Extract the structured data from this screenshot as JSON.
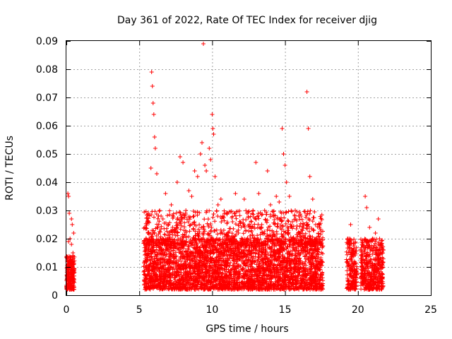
{
  "chart_data": {
    "type": "scatter",
    "title": "Day 361 of 2022, Rate Of TEC Index for receiver djig",
    "xlabel": "GPS time / hours",
    "ylabel": "ROTI / TECUs",
    "xlim": [
      0,
      25
    ],
    "ylim": [
      0,
      0.09
    ],
    "x_ticks": [
      0,
      5,
      10,
      15,
      20,
      25
    ],
    "y_ticks": [
      0,
      0.01,
      0.02,
      0.03,
      0.04,
      0.05,
      0.06,
      0.07,
      0.08,
      0.09
    ],
    "x_tick_labels": [
      "0",
      "5",
      "10",
      "15",
      "20",
      "25"
    ],
    "y_tick_labels": [
      "0",
      "0.01",
      "0.02",
      "0.03",
      "0.04",
      "0.05",
      "0.06",
      "0.07",
      "0.08",
      "0.09"
    ],
    "grid": true,
    "marker": "+",
    "color": "#ff0000",
    "series": [
      {
        "points": [
          [
            0.05,
            0.006
          ],
          [
            0.1,
            0.012
          ],
          [
            0.15,
            0.035
          ],
          [
            0.2,
            0.029
          ],
          [
            0.25,
            0.02
          ],
          [
            0.3,
            0.008
          ],
          [
            0.35,
            0.018
          ],
          [
            0.4,
            0.025
          ],
          [
            0.45,
            0.015
          ],
          [
            0.5,
            0.022
          ],
          [
            0.1,
            0.036
          ],
          [
            0.2,
            0.004
          ],
          [
            0.3,
            0.003
          ],
          [
            0.4,
            0.01
          ],
          [
            0.5,
            0.005
          ],
          [
            0.15,
            0.019
          ],
          [
            0.35,
            0.027
          ],
          [
            5.4,
            0.012
          ],
          [
            5.6,
            0.022
          ],
          [
            5.8,
            0.045
          ],
          [
            5.85,
            0.079
          ],
          [
            5.9,
            0.074
          ],
          [
            5.95,
            0.068
          ],
          [
            6.0,
            0.064
          ],
          [
            6.05,
            0.056
          ],
          [
            6.1,
            0.052
          ],
          [
            6.2,
            0.043
          ],
          [
            6.4,
            0.03
          ],
          [
            6.6,
            0.02
          ],
          [
            6.8,
            0.036
          ],
          [
            7.0,
            0.025
          ],
          [
            7.2,
            0.032
          ],
          [
            7.4,
            0.018
          ],
          [
            7.6,
            0.04
          ],
          [
            7.8,
            0.049
          ],
          [
            8.0,
            0.047
          ],
          [
            8.2,
            0.03
          ],
          [
            8.4,
            0.037
          ],
          [
            8.6,
            0.035
          ],
          [
            8.8,
            0.044
          ],
          [
            9.0,
            0.042
          ],
          [
            9.2,
            0.05
          ],
          [
            9.3,
            0.054
          ],
          [
            9.4,
            0.089
          ],
          [
            9.5,
            0.046
          ],
          [
            9.6,
            0.044
          ],
          [
            9.8,
            0.052
          ],
          [
            9.9,
            0.048
          ],
          [
            10.0,
            0.064
          ],
          [
            10.05,
            0.059
          ],
          [
            10.1,
            0.057
          ],
          [
            10.2,
            0.042
          ],
          [
            10.4,
            0.032
          ],
          [
            10.6,
            0.034
          ],
          [
            10.8,
            0.023
          ],
          [
            11.0,
            0.029
          ],
          [
            11.2,
            0.02
          ],
          [
            11.4,
            0.026
          ],
          [
            11.6,
            0.036
          ],
          [
            11.8,
            0.022
          ],
          [
            12.0,
            0.018
          ],
          [
            12.2,
            0.034
          ],
          [
            12.4,
            0.029
          ],
          [
            12.6,
            0.021
          ],
          [
            12.8,
            0.03
          ],
          [
            13.0,
            0.047
          ],
          [
            13.2,
            0.036
          ],
          [
            13.4,
            0.025
          ],
          [
            13.6,
            0.03
          ],
          [
            13.8,
            0.044
          ],
          [
            14.0,
            0.032
          ],
          [
            14.2,
            0.028
          ],
          [
            14.4,
            0.035
          ],
          [
            14.6,
            0.033
          ],
          [
            14.8,
            0.059
          ],
          [
            14.9,
            0.05
          ],
          [
            15.0,
            0.046
          ],
          [
            15.1,
            0.04
          ],
          [
            15.3,
            0.035
          ],
          [
            15.5,
            0.026
          ],
          [
            15.7,
            0.03
          ],
          [
            15.9,
            0.022
          ],
          [
            16.1,
            0.028
          ],
          [
            16.3,
            0.025
          ],
          [
            16.5,
            0.072
          ],
          [
            16.6,
            0.059
          ],
          [
            16.7,
            0.042
          ],
          [
            16.9,
            0.034
          ],
          [
            17.1,
            0.025
          ],
          [
            17.3,
            0.018
          ],
          [
            17.5,
            0.012
          ],
          [
            19.3,
            0.02
          ],
          [
            19.5,
            0.025
          ],
          [
            19.7,
            0.015
          ],
          [
            19.9,
            0.008
          ],
          [
            19.4,
            0.005
          ],
          [
            19.6,
            0.012
          ],
          [
            20.3,
            0.018
          ],
          [
            20.5,
            0.035
          ],
          [
            20.6,
            0.031
          ],
          [
            20.8,
            0.024
          ],
          [
            21.0,
            0.02
          ],
          [
            21.2,
            0.022
          ],
          [
            21.4,
            0.027
          ],
          [
            21.6,
            0.018
          ],
          [
            21.7,
            0.01
          ],
          [
            20.4,
            0.006
          ],
          [
            20.9,
            0.004
          ],
          [
            21.3,
            0.008
          ]
        ],
        "dense_bands": [
          {
            "x": [
              0.0,
              0.55
            ],
            "y_lower": 0.002,
            "y_upper": 0.014,
            "density": 220
          },
          {
            "x": [
              5.3,
              17.6
            ],
            "y_lower": 0.002,
            "y_upper": 0.02,
            "density": 3400
          },
          {
            "x": [
              5.3,
              17.6
            ],
            "y_lower": 0.018,
            "y_upper": 0.03,
            "density": 700
          },
          {
            "x": [
              19.2,
              19.95
            ],
            "y_lower": 0.002,
            "y_upper": 0.02,
            "density": 200
          },
          {
            "x": [
              20.2,
              21.75
            ],
            "y_lower": 0.002,
            "y_upper": 0.02,
            "density": 450
          }
        ]
      }
    ]
  }
}
